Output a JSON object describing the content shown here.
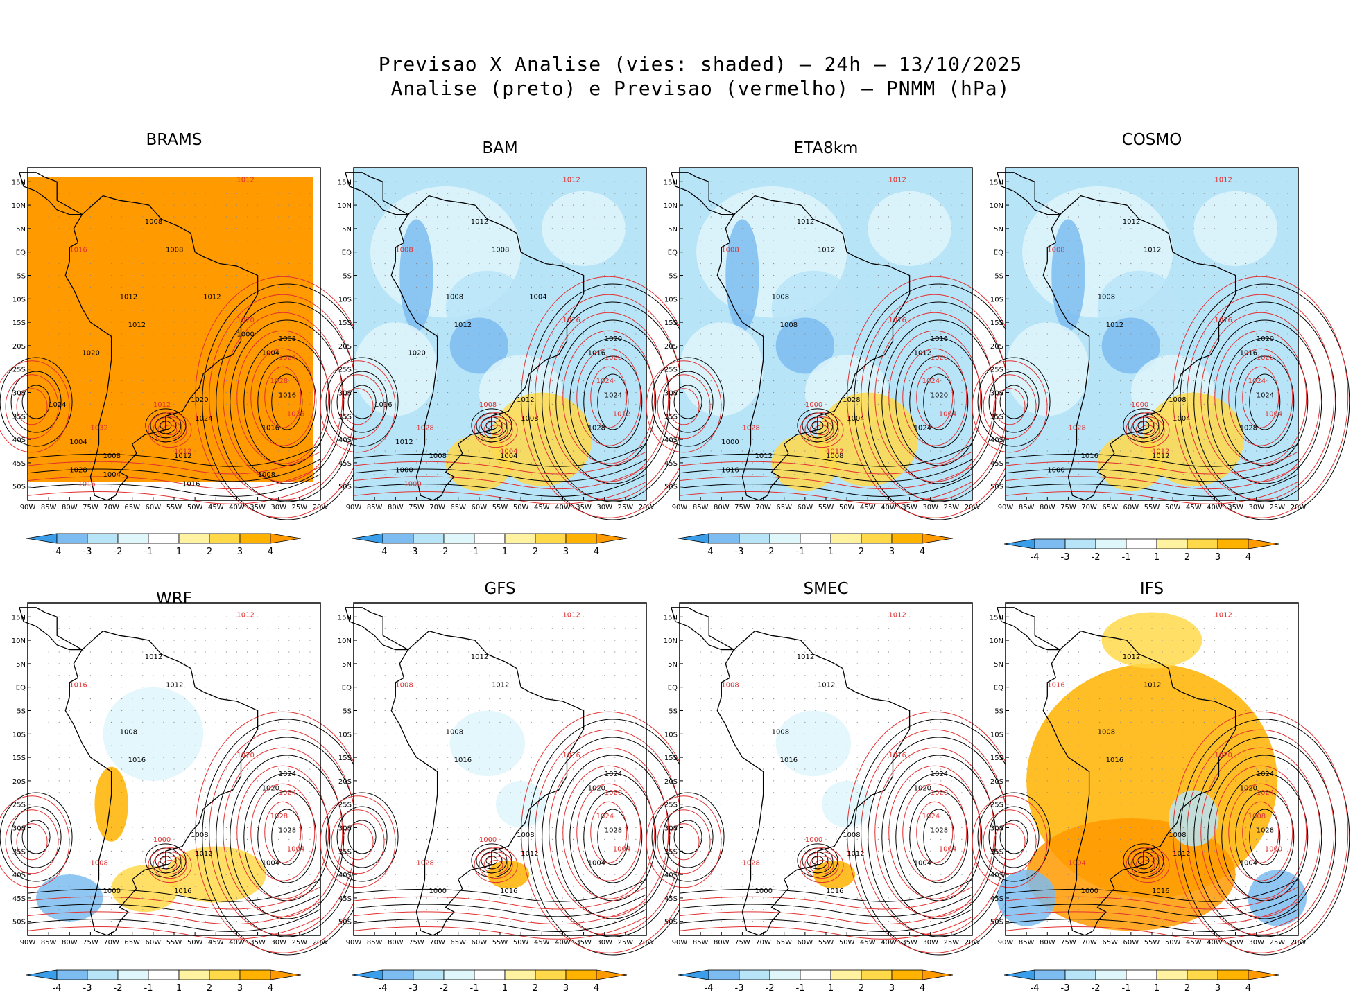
{
  "title": {
    "line1": "Previsao X Analise (vies: shaded) – 24h – 13/10/2025",
    "line2": "Analise (preto) e Previsao (vermelho) – PNMM (hPa)"
  },
  "colors": {
    "analysis_contour": "#000000",
    "forecast_contour": "#e03030",
    "bias_scale": [
      "#3b9eea",
      "#7dbcf0",
      "#b8e4f8",
      "#dff6fb",
      "#ffffff",
      "#fff2a0",
      "#ffd94a",
      "#ffb300",
      "#ff9a00"
    ],
    "land_outline": "#000000"
  },
  "axes": {
    "x_ticks": [
      "90W",
      "85W",
      "80W",
      "75W",
      "70W",
      "65W",
      "60W",
      "55W",
      "50W",
      "45W",
      "40W",
      "35W",
      "30W",
      "25W",
      "20W"
    ],
    "y_ticks": [
      "15N",
      "10N",
      "5N",
      "EQ",
      "5S",
      "10S",
      "15S",
      "20S",
      "25S",
      "30S",
      "35S",
      "40S",
      "45S",
      "50S"
    ]
  },
  "colorbar": {
    "labels": [
      "-4",
      "-3",
      "-2",
      "-1",
      "1",
      "2",
      "3",
      "4"
    ]
  },
  "panels": [
    {
      "name": "BRAMS",
      "bias": "uniform-positive",
      "isobar_labels_analysis": [
        "1008",
        "1008",
        "1012",
        "1012",
        "1004",
        "1008",
        "1016",
        "1016",
        "1020",
        "1024",
        "1012",
        "1008",
        "1028",
        "1004",
        "1024",
        "1020",
        "1012",
        "1000",
        "1016",
        "1008",
        "1004"
      ],
      "isobar_labels_forecast": [
        "1012",
        "1016",
        "1020",
        "1024",
        "1028",
        "1032",
        "1036",
        "1012",
        "1012",
        "1016"
      ]
    },
    {
      "name": "BAM",
      "bias": "mixed-negative",
      "isobar_labels_analysis": [
        "1012",
        "1008",
        "1008",
        "1012",
        "1016",
        "1020",
        "1024",
        "1028",
        "1012",
        "1008",
        "1004",
        "1008",
        "1000",
        "1012",
        "1016",
        "1020",
        "1004"
      ],
      "isobar_labels_forecast": [
        "1012",
        "1008",
        "1016",
        "1020",
        "1024",
        "1028",
        "1012",
        "1008",
        "1004",
        "1000"
      ]
    },
    {
      "name": "ETA8km",
      "bias": "mixed-negative",
      "isobar_labels_analysis": [
        "1012",
        "1012",
        "1008",
        "1008",
        "1012",
        "1016",
        "1020",
        "1024",
        "1028",
        "1004",
        "1008",
        "1012",
        "1016",
        "1000"
      ],
      "isobar_labels_forecast": [
        "1012",
        "1008",
        "1016",
        "1020",
        "1024",
        "1028",
        "1004",
        "1000",
        "1012"
      ]
    },
    {
      "name": "COSMO",
      "bias": "mixed-negative",
      "isobar_labels_analysis": [
        "1012",
        "1012",
        "1008",
        "1012",
        "1016",
        "1020",
        "1024",
        "1028",
        "1008",
        "1004",
        "1012",
        "1016",
        "1000"
      ],
      "isobar_labels_forecast": [
        "1012",
        "1008",
        "1016",
        "1020",
        "1024",
        "1028",
        "1004",
        "1000",
        "1012"
      ]
    },
    {
      "name": "WRF",
      "bias": "mixed",
      "isobar_labels_analysis": [
        "1012",
        "1012",
        "1008",
        "1016",
        "1020",
        "1024",
        "1028",
        "1004",
        "1008",
        "1012",
        "1016",
        "1000"
      ],
      "isobar_labels_forecast": [
        "1012",
        "1016",
        "1020",
        "1024",
        "1028",
        "1008",
        "1004",
        "1000"
      ]
    },
    {
      "name": "GFS",
      "bias": "mixed-light",
      "isobar_labels_analysis": [
        "1012",
        "1012",
        "1008",
        "1016",
        "1020",
        "1024",
        "1028",
        "1004",
        "1008",
        "1012",
        "1016",
        "1000"
      ],
      "isobar_labels_forecast": [
        "1012",
        "1008",
        "1016",
        "1020",
        "1024",
        "1028",
        "1004",
        "1000"
      ]
    },
    {
      "name": "SMEC",
      "bias": "mixed-light",
      "isobar_labels_analysis": [
        "1012",
        "1012",
        "1008",
        "1016",
        "1020",
        "1024",
        "1028",
        "1004",
        "1008",
        "1012",
        "1016",
        "1000"
      ],
      "isobar_labels_forecast": [
        "1012",
        "1008",
        "1016",
        "1020",
        "1024",
        "1028",
        "1004",
        "1000"
      ]
    },
    {
      "name": "IFS",
      "bias": "mostly-positive",
      "isobar_labels_analysis": [
        "1012",
        "1012",
        "1008",
        "1016",
        "1020",
        "1024",
        "1028",
        "1004",
        "1008",
        "1012",
        "1016",
        "1000"
      ],
      "isobar_labels_forecast": [
        "1012",
        "1016",
        "1020",
        "1024",
        "1008",
        "1004",
        "1000"
      ]
    }
  ]
}
